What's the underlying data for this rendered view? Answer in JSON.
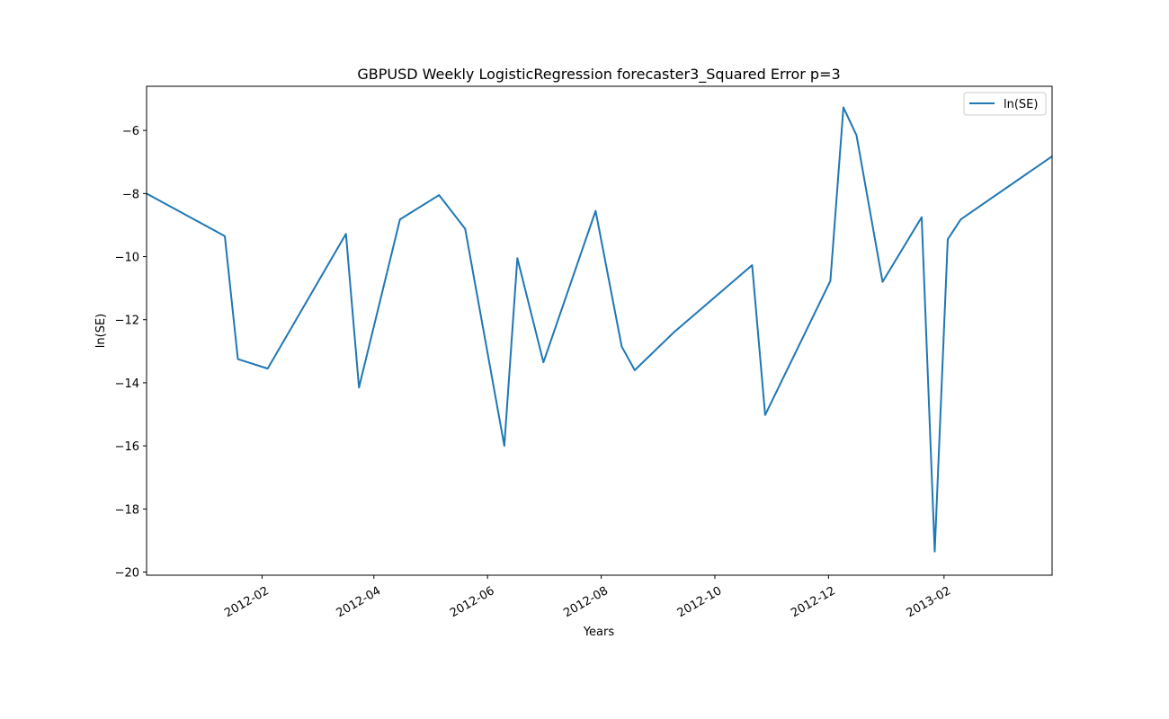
{
  "chart_data": {
    "type": "line",
    "title": "GBPUSD Weekly LogisticRegression forecaster3_Squared Error p=3",
    "xlabel": "Years",
    "ylabel": "ln(SE)",
    "x_axis_type": "date",
    "xlim": [
      "2011-12-01",
      "2013-03-31"
    ],
    "ylim": [
      -20.1,
      -4.6
    ],
    "grid": false,
    "legend_position": "top-right",
    "x_ticks": [
      "2012-02-01",
      "2012-04-01",
      "2012-06-01",
      "2012-08-01",
      "2012-10-01",
      "2012-12-01",
      "2013-02-01"
    ],
    "x_tick_labels": [
      "2012-02",
      "2012-04",
      "2012-06",
      "2012-08",
      "2012-10",
      "2012-12",
      "2013-02"
    ],
    "y_ticks": [
      -20,
      -18,
      -16,
      -14,
      -12,
      -10,
      -8,
      -6
    ],
    "y_tick_labels": [
      "−20",
      "−18",
      "−16",
      "−14",
      "−12",
      "−10",
      "−8",
      "−6"
    ],
    "series": [
      {
        "name": "ln(SE)",
        "color": "#1f77b4",
        "points": [
          {
            "x": "2011-12-01",
            "y": -8.0
          },
          {
            "x": "2012-01-12",
            "y": -9.35
          },
          {
            "x": "2012-01-19",
            "y": -13.25
          },
          {
            "x": "2012-02-04",
            "y": -13.55
          },
          {
            "x": "2012-03-17",
            "y": -9.28
          },
          {
            "x": "2012-03-24",
            "y": -14.15
          },
          {
            "x": "2012-04-15",
            "y": -8.82
          },
          {
            "x": "2012-05-06",
            "y": -8.05
          },
          {
            "x": "2012-05-20",
            "y": -9.12
          },
          {
            "x": "2012-06-10",
            "y": -16.0
          },
          {
            "x": "2012-06-17",
            "y": -10.05
          },
          {
            "x": "2012-07-01",
            "y": -13.35
          },
          {
            "x": "2012-07-29",
            "y": -8.55
          },
          {
            "x": "2012-08-12",
            "y": -12.85
          },
          {
            "x": "2012-08-19",
            "y": -13.6
          },
          {
            "x": "2012-09-09",
            "y": -12.4
          },
          {
            "x": "2012-10-21",
            "y": -10.27
          },
          {
            "x": "2012-10-28",
            "y": -15.02
          },
          {
            "x": "2012-12-02",
            "y": -10.77
          },
          {
            "x": "2012-12-09",
            "y": -5.27
          },
          {
            "x": "2012-12-16",
            "y": -6.15
          },
          {
            "x": "2012-12-30",
            "y": -10.8
          },
          {
            "x": "2013-01-20",
            "y": -8.75
          },
          {
            "x": "2013-01-27",
            "y": -19.35
          },
          {
            "x": "2013-02-03",
            "y": -9.45
          },
          {
            "x": "2013-02-10",
            "y": -8.82
          },
          {
            "x": "2013-03-31",
            "y": -6.82
          }
        ]
      }
    ]
  }
}
